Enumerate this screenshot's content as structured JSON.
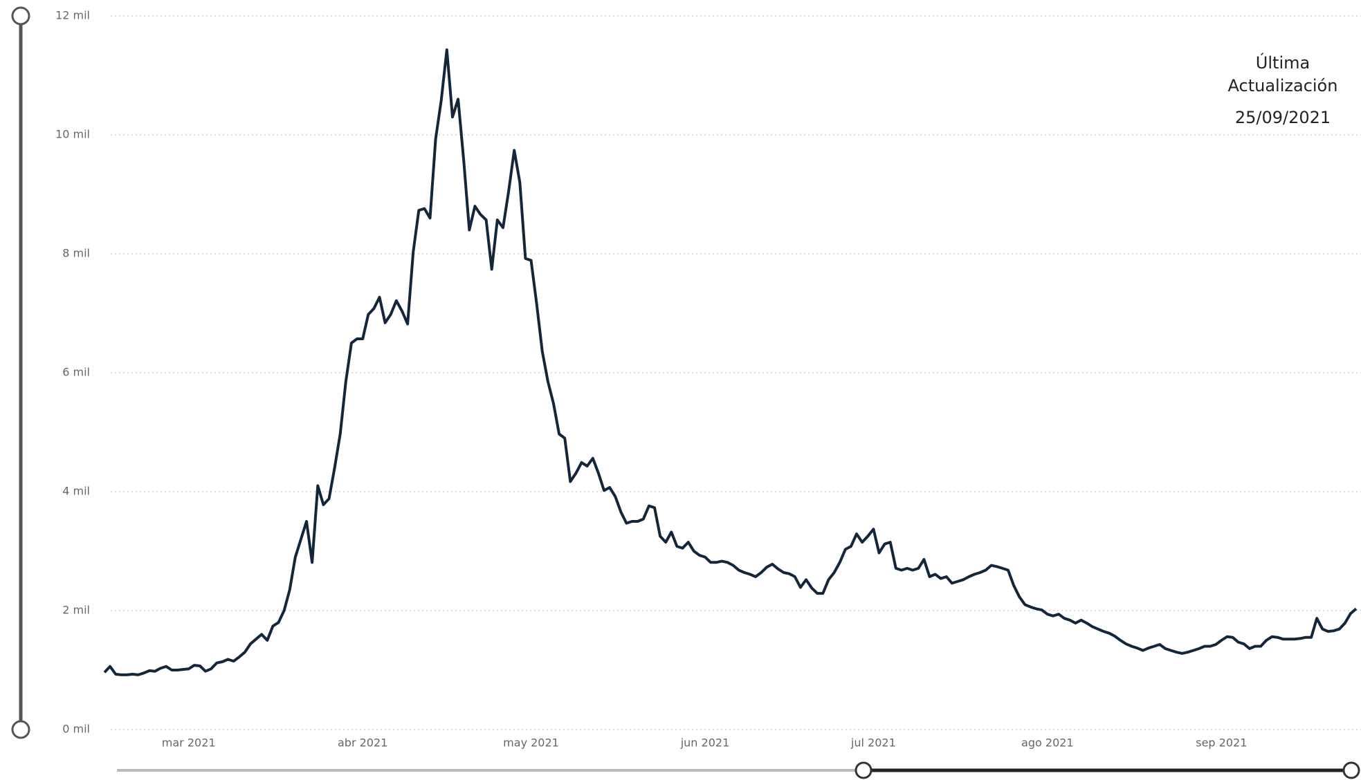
{
  "chart_data": {
    "type": "line",
    "annotation": [
      "Última",
      "Actualización",
      "25/09/2021"
    ],
    "categories": [
      null,
      null,
      null,
      null,
      null,
      null,
      null,
      null,
      null,
      null,
      null,
      null,
      null,
      null,
      null,
      "mar 2021",
      null,
      null,
      null,
      null,
      null,
      null,
      null,
      null,
      null,
      null,
      null,
      null,
      null,
      null,
      null,
      null,
      null,
      null,
      null,
      null,
      null,
      null,
      null,
      null,
      null,
      null,
      null,
      null,
      null,
      null,
      "abr 2021",
      null,
      null,
      null,
      null,
      null,
      null,
      null,
      null,
      null,
      null,
      null,
      null,
      null,
      null,
      null,
      null,
      null,
      null,
      null,
      null,
      null,
      null,
      null,
      null,
      null,
      null,
      null,
      null,
      null,
      "may 2021",
      null,
      null,
      null,
      null,
      null,
      null,
      null,
      null,
      null,
      null,
      null,
      null,
      null,
      null,
      null,
      null,
      null,
      null,
      null,
      null,
      null,
      null,
      null,
      null,
      null,
      null,
      null,
      null,
      null,
      null,
      "jun 2021",
      null,
      null,
      null,
      null,
      null,
      null,
      null,
      null,
      null,
      null,
      null,
      null,
      null,
      null,
      null,
      null,
      null,
      null,
      null,
      null,
      null,
      null,
      null,
      null,
      null,
      null,
      null,
      null,
      null,
      "jul 2021",
      null,
      null,
      null,
      null,
      null,
      null,
      null,
      null,
      null,
      null,
      null,
      null,
      null,
      null,
      null,
      null,
      null,
      null,
      null,
      null,
      null,
      null,
      null,
      null,
      null,
      null,
      null,
      null,
      null,
      null,
      "ago 2021",
      null,
      null,
      null,
      null,
      null,
      null,
      null,
      null,
      null,
      null,
      null,
      null,
      null,
      null,
      null,
      null,
      null,
      null,
      null,
      null,
      null,
      null,
      null,
      null,
      null,
      null,
      null,
      null,
      null,
      null,
      "sep 2021",
      null,
      null,
      null,
      null,
      null,
      null,
      null,
      null,
      null,
      null,
      null,
      null,
      null,
      null,
      null,
      null,
      null,
      null,
      null,
      null,
      null,
      null,
      null,
      null
    ],
    "values": [
      0.96,
      1.06,
      0.93,
      0.92,
      0.92,
      0.93,
      0.92,
      0.95,
      0.99,
      0.98,
      1.03,
      1.06,
      1.0,
      1.0,
      1.01,
      1.02,
      1.08,
      1.07,
      0.98,
      1.02,
      1.12,
      1.14,
      1.18,
      1.15,
      1.22,
      1.3,
      1.44,
      1.52,
      1.6,
      1.5,
      1.74,
      1.8,
      2.0,
      2.35,
      2.9,
      3.2,
      3.5,
      2.81,
      4.1,
      3.78,
      3.88,
      4.4,
      4.97,
      5.85,
      6.5,
      6.57,
      6.57,
      6.98,
      7.08,
      7.27,
      6.84,
      6.98,
      7.21,
      7.04,
      6.82,
      8.03,
      8.73,
      8.76,
      8.6,
      9.93,
      10.58,
      11.43,
      10.3,
      10.6,
      9.57,
      8.4,
      8.8,
      8.66,
      8.57,
      7.74,
      8.57,
      8.44,
      9.05,
      9.74,
      9.2,
      7.92,
      7.89,
      7.16,
      6.36,
      5.85,
      5.48,
      4.97,
      4.9,
      4.17,
      4.31,
      4.49,
      4.43,
      4.56,
      4.31,
      4.02,
      4.07,
      3.92,
      3.66,
      3.47,
      3.5,
      3.5,
      3.54,
      3.76,
      3.73,
      3.25,
      3.15,
      3.32,
      3.08,
      3.05,
      3.15,
      3.0,
      2.93,
      2.9,
      2.81,
      2.81,
      2.83,
      2.81,
      2.76,
      2.68,
      2.64,
      2.61,
      2.57,
      2.64,
      2.73,
      2.78,
      2.7,
      2.64,
      2.62,
      2.57,
      2.39,
      2.52,
      2.38,
      2.29,
      2.29,
      2.52,
      2.64,
      2.81,
      3.03,
      3.08,
      3.29,
      3.15,
      3.25,
      3.37,
      2.97,
      3.12,
      3.15,
      2.71,
      2.68,
      2.71,
      2.68,
      2.71,
      2.86,
      2.57,
      2.61,
      2.54,
      2.57,
      2.46,
      2.49,
      2.52,
      2.57,
      2.61,
      2.64,
      2.68,
      2.76,
      2.74,
      2.71,
      2.68,
      2.42,
      2.23,
      2.1,
      2.06,
      2.03,
      2.01,
      1.94,
      1.91,
      1.94,
      1.87,
      1.84,
      1.79,
      1.84,
      1.79,
      1.73,
      1.69,
      1.65,
      1.62,
      1.57,
      1.5,
      1.44,
      1.4,
      1.37,
      1.33,
      1.37,
      1.4,
      1.43,
      1.36,
      1.33,
      1.3,
      1.28,
      1.3,
      1.33,
      1.36,
      1.4,
      1.4,
      1.43,
      1.5,
      1.56,
      1.55,
      1.47,
      1.44,
      1.36,
      1.4,
      1.4,
      1.5,
      1.56,
      1.55,
      1.52,
      1.52,
      1.52,
      1.53,
      1.55,
      1.55,
      1.87,
      1.69,
      1.65,
      1.66,
      1.69,
      1.79,
      1.95,
      2.03
    ],
    "color": "#14263a",
    "ylim": [
      0,
      12
    ],
    "yticks": [
      {
        "value": 0,
        "label": "0 mil"
      },
      {
        "value": 2,
        "label": "2 mil"
      },
      {
        "value": 4,
        "label": "4 mil"
      },
      {
        "value": 6,
        "label": "6 mil"
      },
      {
        "value": 8,
        "label": "8 mil"
      },
      {
        "value": 10,
        "label": "10 mil"
      },
      {
        "value": 12,
        "label": "12 mil"
      }
    ],
    "grid": true
  }
}
